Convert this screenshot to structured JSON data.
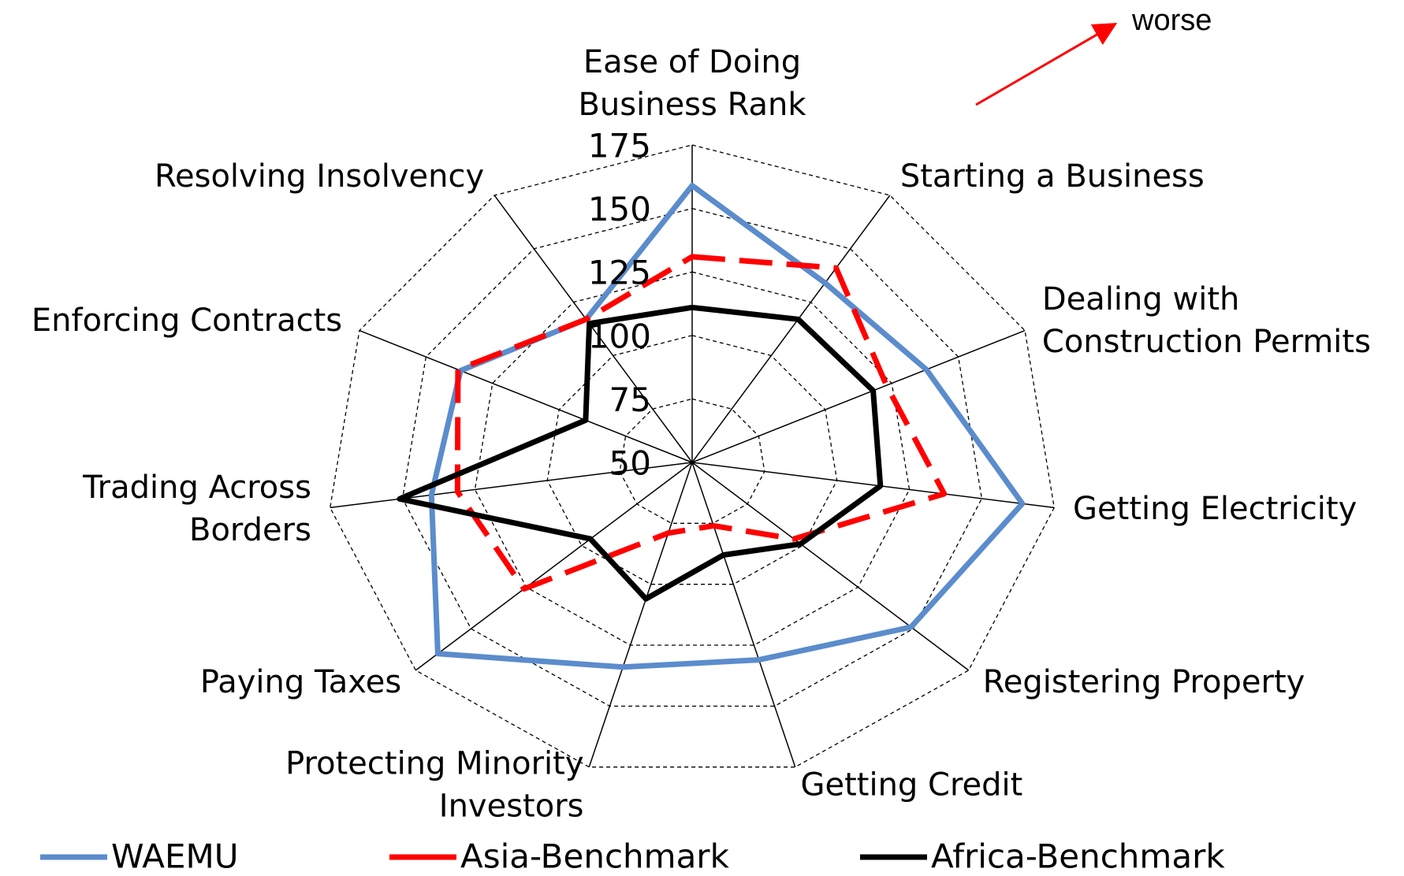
{
  "chart_data": {
    "type": "radar",
    "categories": [
      "Ease of Doing\nBusiness Rank",
      "Starting a Business",
      "Dealing with\nConstruction Permits",
      "Getting Electricity",
      "Registering Property",
      "Getting Credit",
      "Protecting Minority\nInvestors",
      "Paying Taxes",
      "Trading Across\nBorders",
      "Enforcing Contracts",
      "Resolving Insolvency"
    ],
    "series": [
      {
        "name": "WAEMU",
        "color": "#5b8ccc",
        "line_style": "solid",
        "values": [
          159,
          134,
          138,
          164,
          149,
          131,
          134,
          165,
          140,
          137,
          117
        ]
      },
      {
        "name": "Asia-Benchmark",
        "color": "#ff0000",
        "line_style": "dashed",
        "values": [
          131,
          141,
          123,
          137,
          96,
          76,
          79,
          126,
          131,
          138,
          117
        ]
      },
      {
        "name": "Africa-Benchmark",
        "color": "#000000",
        "line_style": "solid",
        "values": [
          111,
          117,
          118,
          115,
          99,
          88,
          106,
          96,
          151,
          90,
          115
        ]
      }
    ],
    "ylim": [
      50,
      175
    ],
    "yticks": [
      50,
      75,
      100,
      125,
      150,
      175
    ],
    "grid": true,
    "annotation": "worse"
  }
}
